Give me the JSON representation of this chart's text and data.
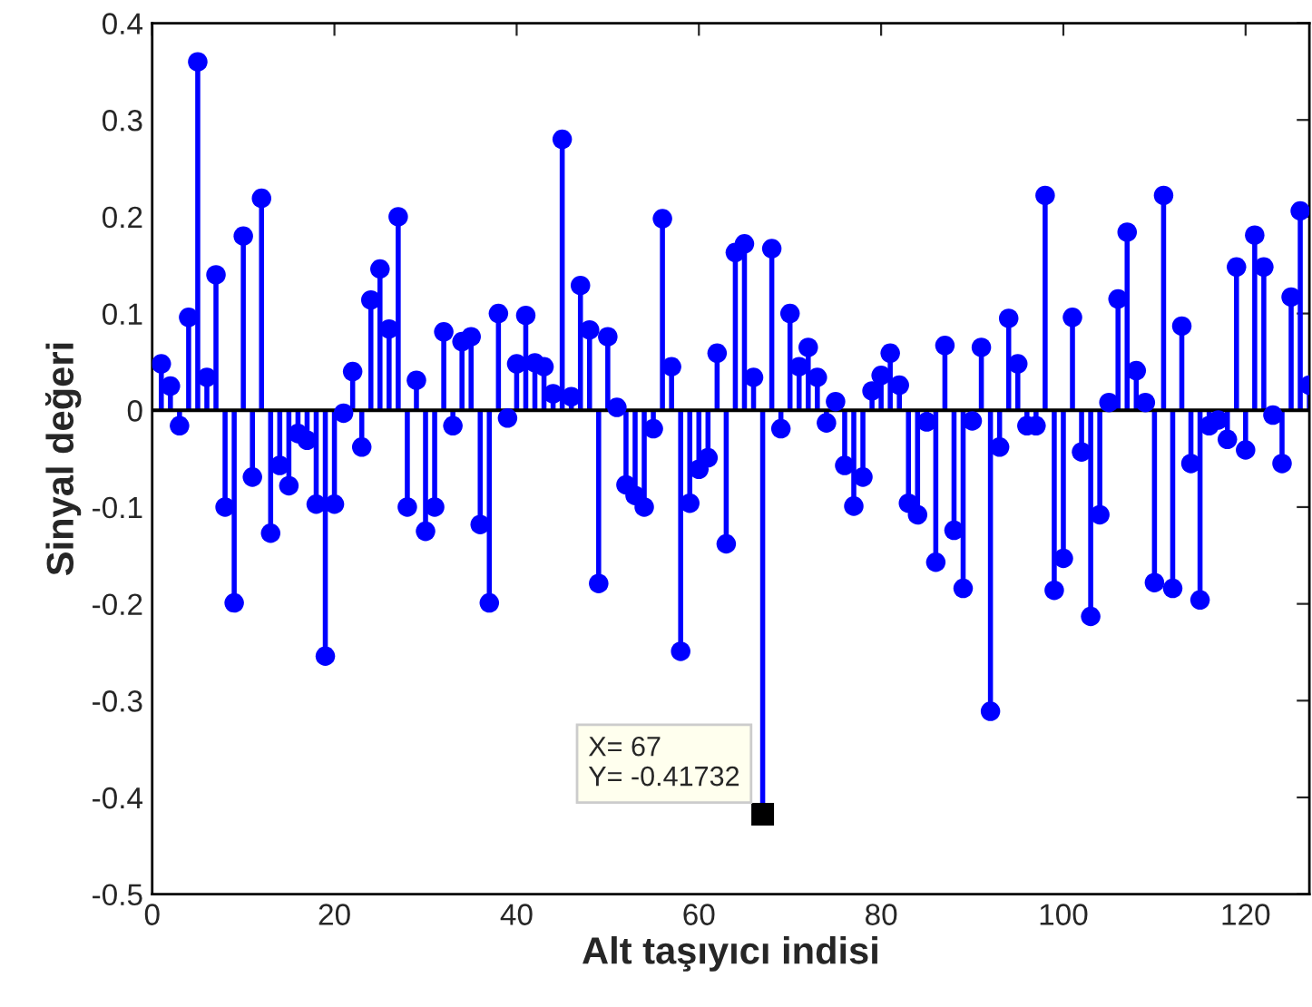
{
  "chart_data": {
    "type": "lollipop",
    "xlabel": "Alt taşıyıcı indisi",
    "ylabel": "Sinyal değeri",
    "x": [
      1,
      2,
      3,
      4,
      5,
      6,
      7,
      8,
      9,
      10,
      11,
      12,
      13,
      14,
      15,
      16,
      17,
      18,
      19,
      20,
      21,
      22,
      23,
      24,
      25,
      26,
      27,
      28,
      29,
      30,
      31,
      32,
      33,
      34,
      35,
      36,
      37,
      38,
      39,
      40,
      41,
      42,
      43,
      44,
      45,
      46,
      47,
      48,
      49,
      50,
      51,
      52,
      53,
      54,
      55,
      56,
      57,
      58,
      59,
      60,
      61,
      62,
      63,
      64,
      65,
      66,
      67,
      68,
      69,
      70,
      71,
      72,
      73,
      74,
      75,
      76,
      77,
      78,
      79,
      80,
      81,
      82,
      83,
      84,
      85,
      86,
      87,
      88,
      89,
      90,
      91,
      92,
      93,
      94,
      95,
      96,
      97,
      98,
      99,
      100,
      101,
      102,
      103,
      104,
      105,
      106,
      107,
      108,
      109,
      110,
      111,
      112,
      113,
      114,
      115,
      116,
      117,
      118,
      119,
      120,
      121,
      122,
      123,
      124,
      125,
      126,
      127
    ],
    "series": [
      {
        "color": "#0000ff",
        "values": [
          0.048,
          0.025,
          -0.016,
          0.096,
          0.36,
          0.034,
          0.14,
          -0.1,
          -0.199,
          0.18,
          -0.069,
          0.219,
          -0.127,
          -0.057,
          -0.078,
          -0.024,
          -0.031,
          -0.097,
          -0.254,
          -0.097,
          -0.003,
          0.04,
          -0.038,
          0.114,
          0.146,
          0.084,
          0.2,
          -0.1,
          0.031,
          -0.125,
          -0.1,
          0.081,
          -0.016,
          0.071,
          0.076,
          -0.118,
          -0.199,
          0.1,
          -0.008,
          0.048,
          0.098,
          0.049,
          0.045,
          0.017,
          0.28,
          0.014,
          0.129,
          0.083,
          -0.179,
          0.076,
          0.003,
          -0.077,
          -0.088,
          -0.1,
          -0.019,
          0.198,
          0.045,
          -0.249,
          -0.096,
          -0.061,
          -0.049,
          0.059,
          -0.138,
          0.163,
          0.172,
          0.034,
          -0.41732,
          0.167,
          -0.019,
          0.1,
          0.045,
          0.065,
          0.034,
          -0.013,
          0.009,
          -0.057,
          -0.099,
          -0.069,
          0.02,
          0.036,
          0.059,
          0.026,
          -0.096,
          -0.108,
          -0.012,
          -0.157,
          0.067,
          -0.124,
          -0.184,
          -0.011,
          0.065,
          -0.311,
          -0.038,
          0.095,
          0.048,
          -0.016,
          -0.016,
          0.222,
          -0.186,
          -0.153,
          0.096,
          -0.043,
          -0.213,
          -0.108,
          0.008,
          0.115,
          0.184,
          0.041,
          0.008,
          -0.178,
          0.222,
          -0.184,
          0.087,
          -0.055,
          -0.196,
          -0.016,
          -0.01,
          -0.03,
          0.148,
          -0.041,
          0.181,
          0.148,
          -0.005,
          -0.055,
          0.117,
          0.206,
          0.026
        ]
      }
    ],
    "xlim": [
      0,
      127
    ],
    "xticks": [
      0,
      20,
      40,
      60,
      80,
      100,
      120
    ],
    "ylim": [
      -0.5,
      0.4
    ],
    "yticks": [
      -0.5,
      -0.4,
      -0.3,
      -0.2,
      -0.1,
      0,
      0.1,
      0.2,
      0.3,
      0.4
    ],
    "marker": "circle",
    "grid": false,
    "legend": false,
    "ref_lines": [
      {
        "axis": "y",
        "value": 0,
        "color": "#000000"
      }
    ],
    "annotations": [
      {
        "text": "X= 67\nY= -0.41732",
        "x": 67,
        "y": -0.41732
      }
    ]
  }
}
